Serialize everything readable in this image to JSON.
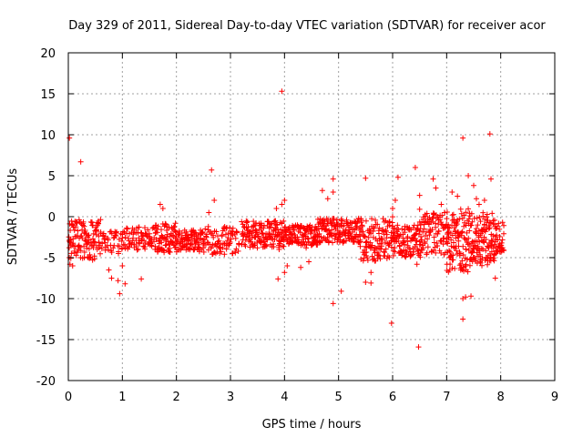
{
  "chart_data": {
    "type": "scatter",
    "title": "Day 329 of 2011, Sidereal Day-to-day VTEC variation (SDTVAR) for receiver acor",
    "xlabel": "GPS time / hours",
    "ylabel": "SDTVAR / TECUs",
    "xlim": [
      0,
      9
    ],
    "ylim": [
      -20,
      20
    ],
    "xticks": [
      0,
      1,
      2,
      3,
      4,
      5,
      6,
      7,
      8,
      9
    ],
    "yticks": [
      -20,
      -15,
      -10,
      -5,
      0,
      5,
      10,
      15,
      20
    ],
    "grid": true,
    "marker": "+",
    "color": "#ff0000",
    "series": [
      {
        "name": "SDTVAR",
        "bands": [
          {
            "x0": 0.0,
            "x1": 0.6,
            "lo": -5.3,
            "hi": -0.3,
            "step": 0.02
          },
          {
            "x0": 0.6,
            "x1": 1.0,
            "lo": -4.5,
            "hi": -1.8,
            "step": 0.04
          },
          {
            "x0": 1.0,
            "x1": 1.6,
            "lo": -4.2,
            "hi": -1.2,
            "step": 0.03
          },
          {
            "x0": 1.6,
            "x1": 2.0,
            "lo": -4.4,
            "hi": -0.8,
            "step": 0.02
          },
          {
            "x0": 2.0,
            "x1": 2.5,
            "lo": -4.3,
            "hi": -1.6,
            "step": 0.02
          },
          {
            "x0": 2.5,
            "x1": 3.15,
            "lo": -4.6,
            "hi": -1.2,
            "step": 0.03
          },
          {
            "x0": 3.2,
            "x1": 4.0,
            "lo": -3.8,
            "hi": -0.5,
            "step": 0.02
          },
          {
            "x0": 4.0,
            "x1": 4.6,
            "lo": -3.5,
            "hi": -1.0,
            "step": 0.02
          },
          {
            "x0": 4.6,
            "x1": 5.4,
            "lo": -3.2,
            "hi": -0.2,
            "step": 0.02
          },
          {
            "x0": 5.4,
            "x1": 6.0,
            "lo": -5.5,
            "hi": 0.0,
            "step": 0.02
          },
          {
            "x0": 6.0,
            "x1": 6.5,
            "lo": -5.2,
            "hi": -1.0,
            "step": 0.02
          },
          {
            "x0": 6.5,
            "x1": 7.0,
            "lo": -4.8,
            "hi": 0.5,
            "step": 0.02
          },
          {
            "x0": 7.0,
            "x1": 7.4,
            "lo": -6.8,
            "hi": 1.0,
            "step": 0.015
          },
          {
            "x0": 7.4,
            "x1": 7.9,
            "lo": -6.0,
            "hi": 0.5,
            "step": 0.015
          },
          {
            "x0": 7.9,
            "x1": 8.05,
            "lo": -4.5,
            "hi": -0.5,
            "step": 0.02
          }
        ],
        "outliers": [
          [
            0.02,
            9.6
          ],
          [
            0.03,
            -5.8
          ],
          [
            0.23,
            6.7
          ],
          [
            0.08,
            -6.0
          ],
          [
            0.75,
            -6.5
          ],
          [
            0.8,
            -7.5
          ],
          [
            0.92,
            -7.8
          ],
          [
            0.95,
            -9.4
          ],
          [
            1.35,
            -7.6
          ],
          [
            1.0,
            -6.0
          ],
          [
            1.05,
            -8.2
          ],
          [
            1.7,
            1.5
          ],
          [
            1.75,
            1.0
          ],
          [
            2.65,
            5.7
          ],
          [
            2.7,
            2.0
          ],
          [
            2.6,
            0.5
          ],
          [
            3.95,
            15.3
          ],
          [
            3.88,
            -7.6
          ],
          [
            4.0,
            -6.8
          ],
          [
            3.9,
            -4.0
          ],
          [
            4.05,
            -6.0
          ],
          [
            3.95,
            1.5
          ],
          [
            3.85,
            1.0
          ],
          [
            4.0,
            2.0
          ],
          [
            4.9,
            -10.6
          ],
          [
            5.05,
            -9.1
          ],
          [
            4.9,
            4.6
          ],
          [
            4.9,
            3.0
          ],
          [
            4.8,
            2.2
          ],
          [
            4.7,
            3.2
          ],
          [
            4.5,
            -3.5
          ],
          [
            4.45,
            -5.5
          ],
          [
            4.3,
            -6.2
          ],
          [
            4.4,
            -3.8
          ],
          [
            5.5,
            4.7
          ],
          [
            5.5,
            -8.0
          ],
          [
            5.6,
            -8.1
          ],
          [
            5.6,
            -6.8
          ],
          [
            5.98,
            -13.0
          ],
          [
            6.1,
            4.8
          ],
          [
            6.05,
            2.0
          ],
          [
            6.0,
            1.0
          ],
          [
            6.42,
            6.0
          ],
          [
            6.48,
            -15.9
          ],
          [
            6.5,
            2.6
          ],
          [
            6.45,
            -5.8
          ],
          [
            6.5,
            0.9
          ],
          [
            6.75,
            4.6
          ],
          [
            6.8,
            3.5
          ],
          [
            6.9,
            1.5
          ],
          [
            7.3,
            9.6
          ],
          [
            7.3,
            -12.5
          ],
          [
            7.3,
            -10.0
          ],
          [
            7.35,
            -9.8
          ],
          [
            7.45,
            -9.7
          ],
          [
            7.4,
            5.0
          ],
          [
            7.5,
            3.8
          ],
          [
            7.55,
            2.2
          ],
          [
            7.6,
            1.5
          ],
          [
            7.2,
            2.5
          ],
          [
            7.1,
            3.0
          ],
          [
            7.8,
            10.1
          ],
          [
            7.82,
            4.6
          ],
          [
            7.7,
            2.0
          ],
          [
            7.9,
            -7.5
          ]
        ]
      }
    ]
  }
}
